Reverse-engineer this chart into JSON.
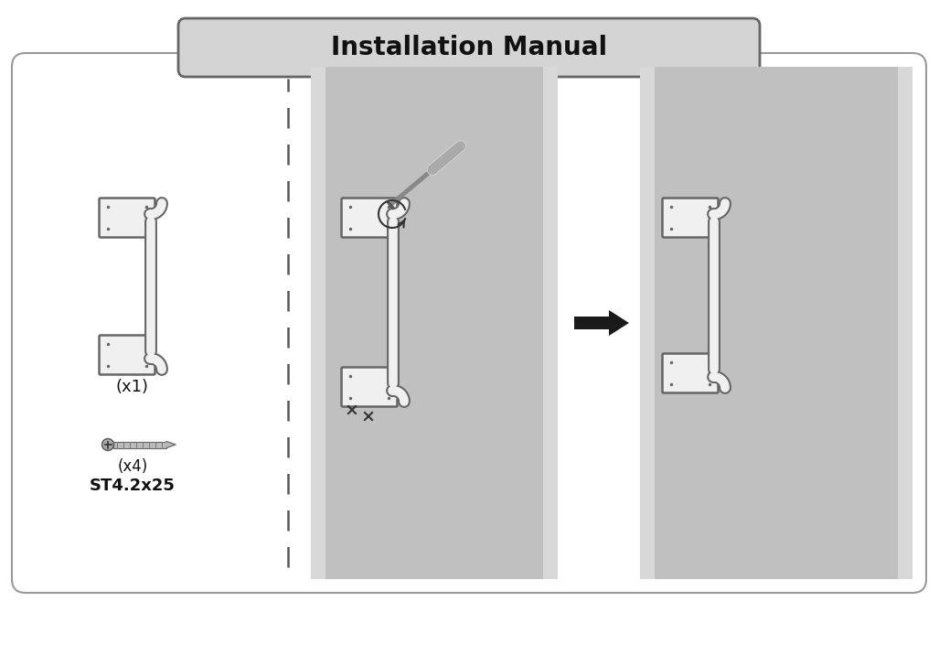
{
  "title": "Installation Manual",
  "title_fontsize": 20,
  "title_bg_color": "#d4d4d4",
  "title_border_color": "#666666",
  "bg_color": "#ffffff",
  "main_box_bg": "#ffffff",
  "main_box_border": "#999999",
  "door_color": "#c0c0c0",
  "door_light_strip": "#d8d8d8",
  "handle_fill": "#f0f0f0",
  "handle_stroke": "#666666",
  "screw_text": "(x4)",
  "screw_label": "ST4.2x25",
  "handle_x1_label": "(x1)",
  "arrow_color": "#1a1a1a",
  "dashed_color": "#555555",
  "text_color": "#111111"
}
